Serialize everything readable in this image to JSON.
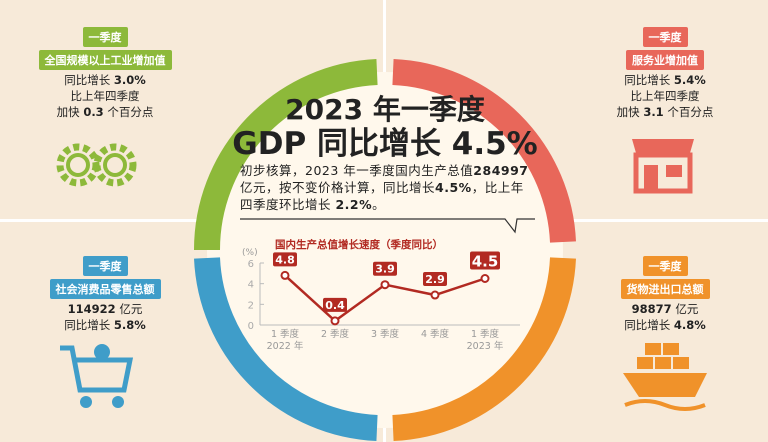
{
  "title": {
    "line1": "2023 年一季度",
    "line2": "GDP 同比增长 4.5%"
  },
  "summary": {
    "p1": "初步核算，2023 年一季度国内生产总值",
    "v1": "284997",
    "p2": " 亿元，按不变价格计算，同比增长",
    "v2": "4.5%",
    "p3": "，比上年四季度环比增长 ",
    "v3": "2.2%",
    "p4": "。"
  },
  "panels": {
    "industry": {
      "tag": "一季度",
      "name": "全国规模以上工业增加值",
      "l1": "同比增长 ",
      "v1": "3.0%",
      "l2": "比上年四季度",
      "l3": "加快 ",
      "v3": "0.3",
      "l3b": " 个百分点",
      "color": "#8db93a"
    },
    "services": {
      "tag": "一季度",
      "name": "服务业增加值",
      "l1": "同比增长 ",
      "v1": "5.4%",
      "l2": "比上年四季度",
      "l3": "加快 ",
      "v3": "3.1",
      "l3b": " 个百分点",
      "color": "#e8675a"
    },
    "retail": {
      "tag": "一季度",
      "name": "社会消费品零售总额",
      "amount": "114922",
      "unit": " 亿元",
      "l1": "同比增长 ",
      "v1": "5.8%",
      "color": "#3f9dc9"
    },
    "trade": {
      "tag": "一季度",
      "name": "货物进出口总额",
      "amount": "98877",
      "unit": " 亿元",
      "l1": "同比增长 ",
      "v1": "4.8%",
      "color": "#f0922a"
    }
  },
  "chart_data": {
    "type": "line",
    "title": "国内生产总值增长速度（季度同比）",
    "ylabel": "(%)",
    "ylim": [
      0,
      6
    ],
    "yticks": [
      "0",
      "2",
      "4",
      "6"
    ],
    "categories": [
      "1 季度",
      "2 季度",
      "3 季度",
      "4 季度",
      "1 季度"
    ],
    "year_labels": [
      "2022 年",
      "",
      "",
      "",
      "2023 年"
    ],
    "values": [
      4.8,
      0.4,
      3.9,
      2.9,
      4.5
    ],
    "labels": [
      "4.8",
      "0.4",
      "3.9",
      "2.9",
      "4.5"
    ],
    "color": "#b22a22"
  }
}
